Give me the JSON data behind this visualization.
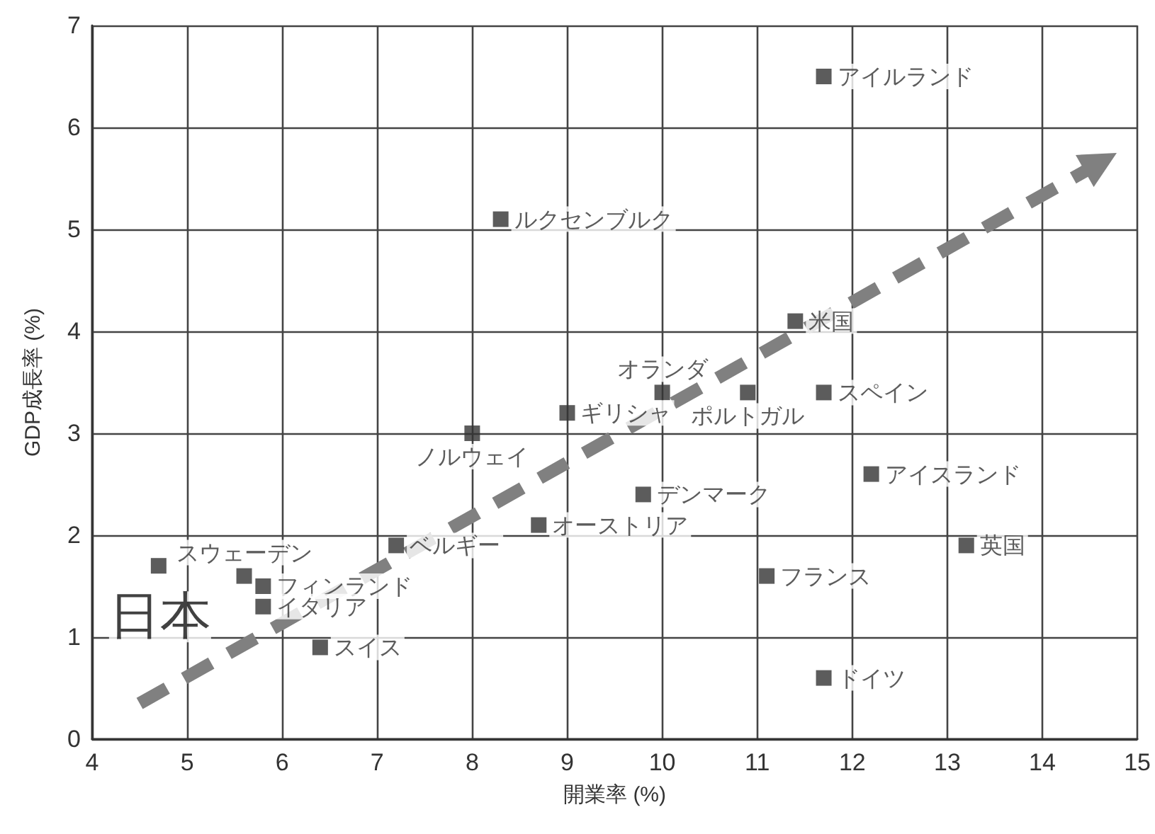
{
  "chart_data": {
    "type": "scatter",
    "xlabel": "開業率 (%)",
    "ylabel": "GDP成長率 (%)",
    "xlim": [
      4,
      15
    ],
    "xticks": [
      4,
      5,
      6,
      7,
      8,
      9,
      10,
      11,
      12,
      13,
      14,
      15
    ],
    "ylim": [
      0,
      7
    ],
    "yticks": [
      0,
      1,
      2,
      3,
      4,
      5,
      6,
      7
    ],
    "grid": true,
    "marker": "square",
    "legend": false,
    "series": [
      {
        "color": "#333333",
        "x": [
          4.7
        ],
        "values": [
          1.7
        ]
      },
      {
        "name": "スウェーデン",
        "color": "#333333",
        "x": [
          5.6
        ],
        "values": [
          1.6
        ]
      },
      {
        "name": "フィンランド",
        "color": "#333333",
        "x": [
          5.8
        ],
        "values": [
          1.5
        ]
      },
      {
        "name": "イタリア",
        "color": "#333333",
        "x": [
          5.8
        ],
        "values": [
          1.3
        ]
      },
      {
        "name": "スイス",
        "color": "#333333",
        "x": [
          6.4
        ],
        "values": [
          0.9
        ]
      },
      {
        "name": "ベルギー",
        "color": "#333333",
        "x": [
          7.2
        ],
        "values": [
          1.9
        ]
      },
      {
        "name": "オーストリア",
        "color": "#333333",
        "x": [
          8.7
        ],
        "values": [
          2.1
        ]
      },
      {
        "name": "ノルウェイ",
        "color": "#333333",
        "x": [
          8.0
        ],
        "values": [
          3.0
        ]
      },
      {
        "name": "ギリシャ",
        "color": "#333333",
        "x": [
          9.0
        ],
        "values": [
          3.2
        ]
      },
      {
        "name": "ルクセンブルク",
        "color": "#333333",
        "x": [
          8.3
        ],
        "values": [
          5.1
        ]
      },
      {
        "name": "オランダ",
        "color": "#333333",
        "x": [
          10.0
        ],
        "values": [
          3.4
        ]
      },
      {
        "name": "ポルトガル",
        "color": "#333333",
        "x": [
          10.9
        ],
        "values": [
          3.4
        ]
      },
      {
        "name": "スペイン",
        "color": "#333333",
        "x": [
          11.7
        ],
        "values": [
          3.4
        ]
      },
      {
        "name": "米国",
        "color": "#333333",
        "x": [
          11.4
        ],
        "values": [
          4.1
        ]
      },
      {
        "name": "アイルランド",
        "color": "#333333",
        "x": [
          11.7
        ],
        "values": [
          6.5
        ]
      },
      {
        "name": "デンマーク",
        "color": "#333333",
        "x": [
          9.8
        ],
        "values": [
          2.4
        ]
      },
      {
        "name": "アイスランド",
        "color": "#333333",
        "x": [
          12.2
        ],
        "values": [
          2.6
        ]
      },
      {
        "name": "英国",
        "color": "#333333",
        "x": [
          13.2
        ],
        "values": [
          1.9
        ]
      },
      {
        "name": "フランス",
        "color": "#333333",
        "x": [
          11.1
        ],
        "values": [
          1.6
        ]
      },
      {
        "name": "ドイツ",
        "color": "#333333",
        "x": [
          11.7
        ],
        "values": [
          0.6
        ]
      },
      {
        "type": "line",
        "line_style": "dashed",
        "marker": "triangle",
        "color": "#808080",
        "x": [
          4.5,
          14.6
        ],
        "values": [
          0.35,
          5.65
        ]
      }
    ],
    "annotations": [
      {
        "text": "日本",
        "x": 4.7,
        "y": 1.7
      }
    ]
  }
}
